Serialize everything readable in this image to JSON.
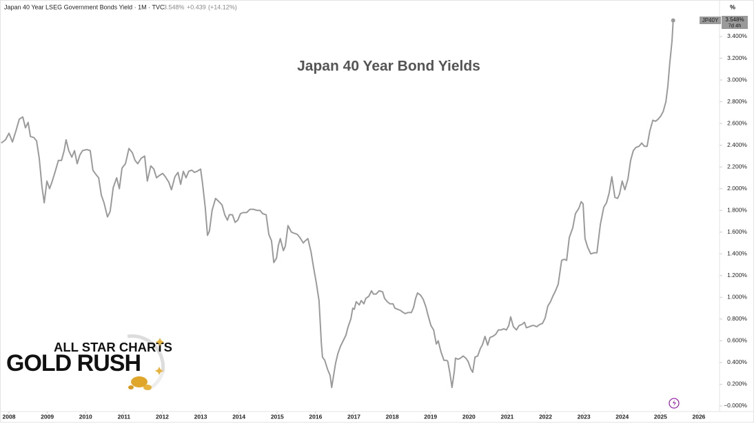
{
  "chart_data": {
    "type": "line",
    "subtitle": "Japan 40 Year LSEG Government Bonds Yield · 1M · TVC",
    "last_value": "3.548%",
    "change": "+0.439",
    "change_percent": "(+14.12%)",
    "title": "Japan 40 Year Bond Yields",
    "y_unit": "%",
    "countdown": "7d 4h",
    "logo_top": "ALL STAR CHARTS",
    "logo_bottom": "GOLD RUSH",
    "xlim": [
      2007.766,
      2026.468
    ],
    "ylim": [
      -0.051,
      3.622
    ],
    "xticks": [
      2008,
      2009,
      2010,
      2011,
      2012,
      2013,
      2014,
      2015,
      2016,
      2017,
      2018,
      2019,
      2020,
      2021,
      2022,
      2023,
      2024,
      2025,
      2026
    ],
    "yticks": [
      {
        "value": 0,
        "label": "−0.000%"
      },
      {
        "value": 0.2,
        "label": "0.200%"
      },
      {
        "value": 0.4,
        "label": "0.400%"
      },
      {
        "value": 0.6,
        "label": "0.600%"
      },
      {
        "value": 0.8,
        "label": "0.800%"
      },
      {
        "value": 1.0,
        "label": "1.000%"
      },
      {
        "value": 1.2,
        "label": "1.200%"
      },
      {
        "value": 1.4,
        "label": "1.400%"
      },
      {
        "value": 1.6,
        "label": "1.600%"
      },
      {
        "value": 1.8,
        "label": "1.800%"
      },
      {
        "value": 2.0,
        "label": "2.000%"
      },
      {
        "value": 2.2,
        "label": "2.200%"
      },
      {
        "value": 2.4,
        "label": "2.400%"
      },
      {
        "value": 2.6,
        "label": "2.600%"
      },
      {
        "value": 2.8,
        "label": "2.800%"
      },
      {
        "value": 3.0,
        "label": "3.000%"
      },
      {
        "value": 3.2,
        "label": "3.200%"
      },
      {
        "value": 3.4,
        "label": "3.400%"
      }
    ],
    "grid": false,
    "series": [
      {
        "name": "JP40Y",
        "color": "#9a9a9a",
        "x": [
          2007.8,
          2007.91,
          2008.0,
          2008.09,
          2008.18,
          2008.27,
          2008.36,
          2008.43,
          2008.5,
          2008.56,
          2008.65,
          2008.72,
          2008.79,
          2008.86,
          2008.92,
          2008.99,
          2009.06,
          2009.13,
          2009.2,
          2009.29,
          2009.37,
          2009.44,
          2009.49,
          2009.56,
          2009.64,
          2009.71,
          2009.78,
          2009.85,
          2009.92,
          2010.03,
          2010.12,
          2010.19,
          2010.27,
          2010.34,
          2010.41,
          2010.48,
          2010.57,
          2010.64,
          2010.72,
          2010.81,
          2010.88,
          2010.95,
          2011.04,
          2011.13,
          2011.22,
          2011.29,
          2011.36,
          2011.45,
          2011.54,
          2011.61,
          2011.7,
          2011.78,
          2011.85,
          2011.92,
          2012.01,
          2012.08,
          2012.17,
          2012.24,
          2012.33,
          2012.41,
          2012.48,
          2012.55,
          2012.62,
          2012.69,
          2012.77,
          2012.84,
          2012.91,
          2013.0,
          2013.05,
          2013.12,
          2013.18,
          2013.23,
          2013.3,
          2013.39,
          2013.48,
          2013.56,
          2013.63,
          2013.7,
          2013.75,
          2013.83,
          2013.9,
          2013.97,
          2014.04,
          2014.11,
          2014.2,
          2014.29,
          2014.38,
          2014.47,
          2014.55,
          2014.62,
          2014.71,
          2014.78,
          2014.85,
          2014.91,
          2014.98,
          2015.03,
          2015.08,
          2015.16,
          2015.21,
          2015.28,
          2015.37,
          2015.44,
          2015.52,
          2015.59,
          2015.68,
          2015.73,
          2015.8,
          2015.88,
          2015.95,
          2016.02,
          2016.09,
          2016.15,
          2016.18,
          2016.24,
          2016.31,
          2016.38,
          2016.42,
          2016.47,
          2016.52,
          2016.58,
          2016.65,
          2016.72,
          2016.79,
          2016.85,
          2016.92,
          2016.97,
          2017.01,
          2017.06,
          2017.14,
          2017.19,
          2017.26,
          2017.31,
          2017.39,
          2017.46,
          2017.51,
          2017.58,
          2017.66,
          2017.75,
          2017.8,
          2017.87,
          2017.94,
          2018.02,
          2018.07,
          2018.14,
          2018.21,
          2018.29,
          2018.34,
          2018.41,
          2018.5,
          2018.56,
          2018.61,
          2018.66,
          2018.74,
          2018.81,
          2018.88,
          2018.93,
          2019.01,
          2019.08,
          2019.15,
          2019.2,
          2019.27,
          2019.35,
          2019.42,
          2019.45,
          2019.51,
          2019.56,
          2019.62,
          2019.65,
          2019.72,
          2019.78,
          2019.85,
          2019.92,
          2019.98,
          2020.05,
          2020.1,
          2020.16,
          2020.23,
          2020.3,
          2020.35,
          2020.42,
          2020.49,
          2020.55,
          2020.62,
          2020.7,
          2020.77,
          2020.84,
          2020.91,
          2020.98,
          2021.04,
          2021.09,
          2021.16,
          2021.24,
          2021.31,
          2021.38,
          2021.45,
          2021.5,
          2021.58,
          2021.65,
          2021.7,
          2021.77,
          2021.85,
          2021.92,
          2021.99,
          2022.06,
          2022.13,
          2022.19,
          2022.26,
          2022.33,
          2022.42,
          2022.49,
          2022.55,
          2022.62,
          2022.71,
          2022.78,
          2022.87,
          2022.93,
          2022.98,
          2023.03,
          2023.1,
          2023.18,
          2023.27,
          2023.34,
          2023.43,
          2023.52,
          2023.59,
          2023.66,
          2023.73,
          2023.81,
          2023.88,
          2023.93,
          2024.0,
          2024.07,
          2024.15,
          2024.22,
          2024.29,
          2024.36,
          2024.44,
          2024.51,
          2024.58,
          2024.65,
          2024.72,
          2024.8,
          2024.87,
          2024.94,
          2025.01,
          2025.07,
          2025.14,
          2025.19,
          2025.24,
          2025.3,
          2025.33
        ],
        "values": [
          2.42,
          2.45,
          2.51,
          2.43,
          2.53,
          2.64,
          2.66,
          2.56,
          2.61,
          2.48,
          2.47,
          2.44,
          2.28,
          2.02,
          1.87,
          2.07,
          2.0,
          2.07,
          2.15,
          2.26,
          2.26,
          2.35,
          2.45,
          2.35,
          2.29,
          2.35,
          2.23,
          2.31,
          2.35,
          2.36,
          2.35,
          2.17,
          2.13,
          2.1,
          1.94,
          1.87,
          1.74,
          1.79,
          2.01,
          2.1,
          2.0,
          2.19,
          2.23,
          2.37,
          2.33,
          2.26,
          2.23,
          2.28,
          2.3,
          2.07,
          2.21,
          2.18,
          2.1,
          2.12,
          2.14,
          2.11,
          2.06,
          1.99,
          2.11,
          2.15,
          2.04,
          2.16,
          2.1,
          2.16,
          2.17,
          2.15,
          2.16,
          2.18,
          2.05,
          1.83,
          1.57,
          1.61,
          1.8,
          1.91,
          1.88,
          1.85,
          1.76,
          1.71,
          1.76,
          1.76,
          1.69,
          1.71,
          1.77,
          1.78,
          1.78,
          1.81,
          1.81,
          1.8,
          1.8,
          1.77,
          1.76,
          1.58,
          1.52,
          1.32,
          1.36,
          1.48,
          1.54,
          1.43,
          1.47,
          1.66,
          1.6,
          1.59,
          1.58,
          1.55,
          1.5,
          1.52,
          1.54,
          1.42,
          1.27,
          1.13,
          0.97,
          0.58,
          0.45,
          0.42,
          0.34,
          0.28,
          0.17,
          0.28,
          0.39,
          0.48,
          0.55,
          0.6,
          0.65,
          0.73,
          0.8,
          0.9,
          0.89,
          0.96,
          0.93,
          0.97,
          0.94,
          0.99,
          1.01,
          1.06,
          1.03,
          1.03,
          1.06,
          1.05,
          0.99,
          0.96,
          0.94,
          0.94,
          0.9,
          0.89,
          0.88,
          0.86,
          0.85,
          0.86,
          0.86,
          0.91,
          0.99,
          1.04,
          1.02,
          0.98,
          0.91,
          0.84,
          0.74,
          0.7,
          0.57,
          0.6,
          0.5,
          0.42,
          0.42,
          0.41,
          0.29,
          0.17,
          0.32,
          0.44,
          0.43,
          0.44,
          0.46,
          0.44,
          0.41,
          0.34,
          0.31,
          0.45,
          0.46,
          0.53,
          0.56,
          0.64,
          0.56,
          0.63,
          0.64,
          0.66,
          0.7,
          0.7,
          0.71,
          0.7,
          0.74,
          0.82,
          0.73,
          0.7,
          0.74,
          0.75,
          0.77,
          0.72,
          0.73,
          0.74,
          0.74,
          0.73,
          0.75,
          0.76,
          0.81,
          0.92,
          0.96,
          1.01,
          1.06,
          1.12,
          1.34,
          1.35,
          1.34,
          1.55,
          1.64,
          1.77,
          1.82,
          1.88,
          1.86,
          1.54,
          1.46,
          1.4,
          1.41,
          1.41,
          1.67,
          1.83,
          1.87,
          1.96,
          2.11,
          1.92,
          1.91,
          1.95,
          2.07,
          1.99,
          2.09,
          2.26,
          2.35,
          2.38,
          2.39,
          2.42,
          2.39,
          2.39,
          2.53,
          2.63,
          2.62,
          2.64,
          2.67,
          2.71,
          2.8,
          2.94,
          3.15,
          3.36,
          3.548
        ]
      }
    ]
  }
}
